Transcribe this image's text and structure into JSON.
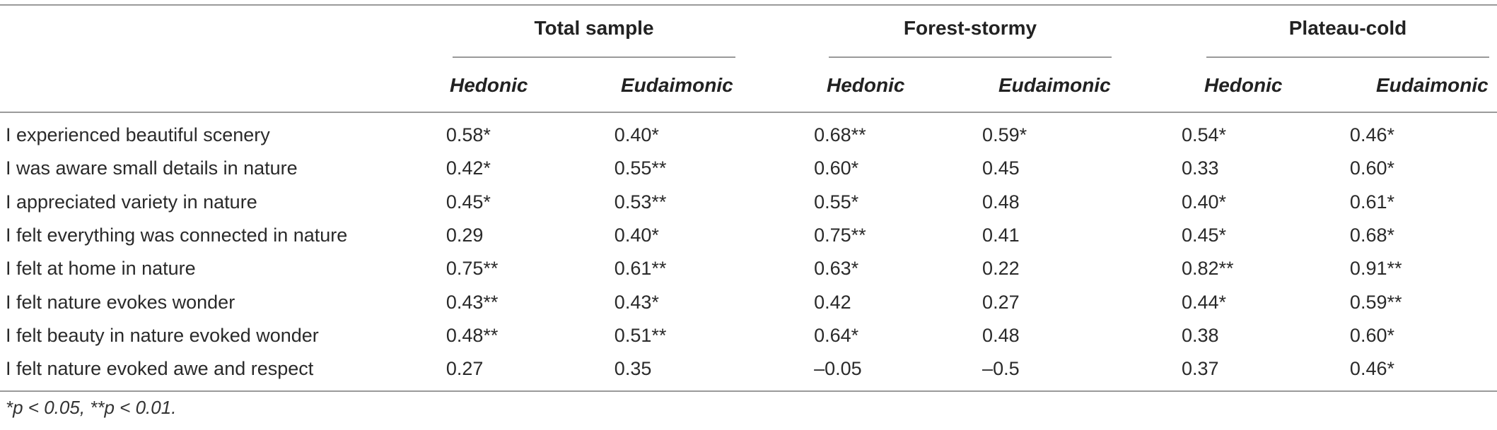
{
  "groups": [
    {
      "label": "Total sample"
    },
    {
      "label": "Forest-stormy"
    },
    {
      "label": "Plateau-cold"
    }
  ],
  "subheaders": [
    "Hedonic",
    "Eudaimonic",
    "Hedonic",
    "Eudaimonic",
    "Hedonic",
    "Eudaimonic"
  ],
  "rows": [
    {
      "label": "I experienced beautiful scenery",
      "values": [
        "0.58*",
        "0.40*",
        "0.68**",
        "0.59*",
        "0.54*",
        "0.46*"
      ]
    },
    {
      "label": "I was aware small details in nature",
      "values": [
        "0.42*",
        "0.55**",
        "0.60*",
        "0.45",
        "0.33",
        "0.60*"
      ]
    },
    {
      "label": "I appreciated variety in nature",
      "values": [
        "0.45*",
        "0.53**",
        "0.55*",
        "0.48",
        "0.40*",
        "0.61*"
      ]
    },
    {
      "label": "I felt everything was connected in nature",
      "values": [
        "0.29",
        "0.40*",
        "0.75**",
        "0.41",
        "0.45*",
        "0.68*"
      ]
    },
    {
      "label": "I felt at home in nature",
      "values": [
        "0.75**",
        "0.61**",
        "0.63*",
        "0.22",
        "0.82**",
        "0.91**"
      ]
    },
    {
      "label": "I felt nature evokes wonder",
      "values": [
        "0.43**",
        "0.43*",
        "0.42",
        "0.27",
        "0.44*",
        "0.59**"
      ]
    },
    {
      "label": "I felt beauty in nature evoked wonder",
      "values": [
        "0.48**",
        "0.51**",
        "0.64*",
        "0.48",
        "0.38",
        "0.60*"
      ]
    },
    {
      "label": "I felt nature evoked awe and respect",
      "values": [
        "0.27",
        "0.35",
        "–0.05",
        "–0.5",
        "0.37",
        "0.46*"
      ]
    }
  ],
  "footnote": "*p < 0.05, **p < 0.01."
}
